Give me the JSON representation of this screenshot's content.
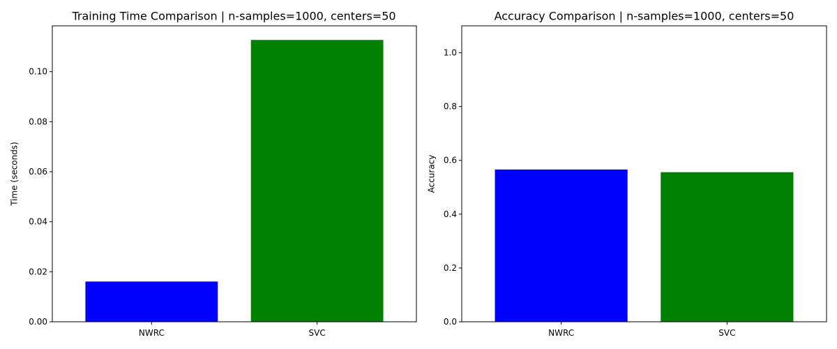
{
  "chart_data": [
    {
      "type": "bar",
      "title": "Training Time Comparison | n-samples=1000, centers=50",
      "xlabel": "",
      "ylabel": "Time (seconds)",
      "categories": [
        "NWRC",
        "SVC"
      ],
      "values": [
        0.0161,
        0.1127
      ],
      "colors": [
        "#0000ff",
        "#008000"
      ],
      "ylim": [
        0,
        0.11835
      ],
      "yticks": [
        0.0,
        0.02,
        0.04,
        0.06,
        0.08,
        0.1
      ],
      "ytick_labels": [
        "0.00",
        "0.02",
        "0.04",
        "0.06",
        "0.08",
        "0.10"
      ],
      "grid": false,
      "legend": "none"
    },
    {
      "type": "bar",
      "title": "Accuracy Comparison | n-samples=1000, centers=50",
      "xlabel": "",
      "ylabel": "Accuracy",
      "categories": [
        "NWRC",
        "SVC"
      ],
      "values": [
        0.566,
        0.556
      ],
      "colors": [
        "#0000ff",
        "#008000"
      ],
      "ylim": [
        0,
        1.1
      ],
      "yticks": [
        0.0,
        0.2,
        0.4,
        0.6,
        0.8,
        1.0
      ],
      "ytick_labels": [
        "0.0",
        "0.2",
        "0.4",
        "0.6",
        "0.8",
        "1.0"
      ],
      "grid": false,
      "legend": "none"
    }
  ]
}
